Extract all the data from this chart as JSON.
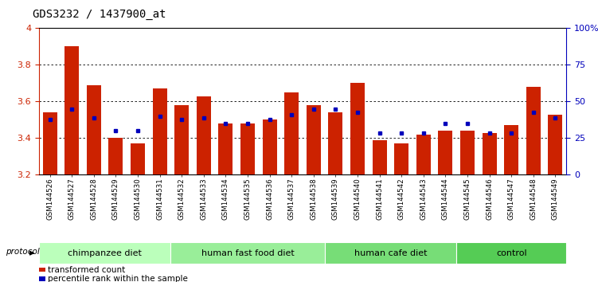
{
  "title": "GDS3232 / 1437900_at",
  "categories": [
    "GSM144526",
    "GSM144527",
    "GSM144528",
    "GSM144529",
    "GSM144530",
    "GSM144531",
    "GSM144532",
    "GSM144533",
    "GSM144534",
    "GSM144535",
    "GSM144536",
    "GSM144537",
    "GSM144538",
    "GSM144539",
    "GSM144540",
    "GSM144541",
    "GSM144542",
    "GSM144543",
    "GSM144544",
    "GSM144545",
    "GSM144546",
    "GSM144547",
    "GSM144548",
    "GSM144549"
  ],
  "bar_values": [
    3.54,
    3.9,
    3.69,
    3.4,
    3.37,
    3.67,
    3.58,
    3.63,
    3.48,
    3.48,
    3.5,
    3.65,
    3.58,
    3.54,
    3.7,
    3.39,
    3.37,
    3.42,
    3.44,
    3.44,
    3.43,
    3.47,
    3.68,
    3.53
  ],
  "percentile_values": [
    3.5,
    3.56,
    3.51,
    3.44,
    3.44,
    3.52,
    3.5,
    3.51,
    3.48,
    3.48,
    3.5,
    3.53,
    3.56,
    3.56,
    3.54,
    3.43,
    3.43,
    3.43,
    3.48,
    3.48,
    3.43,
    3.43,
    3.54,
    3.51
  ],
  "ylim_left": [
    3.2,
    4.0
  ],
  "ylim_right": [
    0,
    100
  ],
  "yticks_left": [
    3.2,
    3.4,
    3.6,
    3.8,
    4.0
  ],
  "ytick_labels_left": [
    "3.2",
    "3.4",
    "3.6",
    "3.8",
    "4"
  ],
  "yticks_right": [
    0,
    25,
    50,
    75,
    100
  ],
  "ytick_labels_right": [
    "0",
    "25",
    "50",
    "75",
    "100%"
  ],
  "bar_color": "#CC2200",
  "dot_color": "#0000BB",
  "groups": [
    {
      "label": "chimpanzee diet",
      "start": 0,
      "end": 6,
      "color": "#BBFFBB"
    },
    {
      "label": "human fast food diet",
      "start": 6,
      "end": 13,
      "color": "#99EE99"
    },
    {
      "label": "human cafe diet",
      "start": 13,
      "end": 19,
      "color": "#77DD77"
    },
    {
      "label": "control",
      "start": 19,
      "end": 24,
      "color": "#55CC55"
    }
  ],
  "protocol_label": "protocol",
  "legend_items": [
    {
      "label": "transformed count",
      "color": "#CC2200",
      "marker": "s"
    },
    {
      "label": "percentile rank within the sample",
      "color": "#0000BB",
      "marker": "s"
    }
  ],
  "grid_color": "#000000",
  "background_color": "#FFFFFF",
  "title_fontsize": 10,
  "axis_color_left": "#CC2200",
  "axis_color_right": "#0000BB",
  "tick_fontsize": 8,
  "xlabel_fontsize": 7,
  "group_fontsize": 8
}
